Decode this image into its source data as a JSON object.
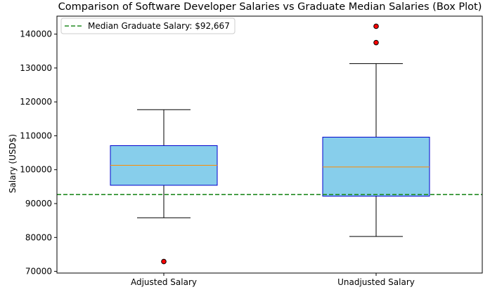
{
  "chart_data": {
    "type": "box",
    "title": "Comparison of Software Developer Salaries vs Graduate Median Salaries (Box Plot)",
    "xlabel": "",
    "ylabel": "Salary (USD$)",
    "ylim": [
      69500,
      145300
    ],
    "yticks": [
      70000,
      80000,
      90000,
      100000,
      110000,
      120000,
      130000,
      140000
    ],
    "categories": [
      "Adjusted Salary",
      "Unadjusted Salary"
    ],
    "boxes": [
      {
        "category": "Adjusted Salary",
        "whisker_low": 85800,
        "q1": 95400,
        "median": 101300,
        "q3": 107100,
        "whisker_high": 117700,
        "outliers": [
          72900
        ]
      },
      {
        "category": "Unadjusted Salary",
        "whisker_low": 80300,
        "q1": 92200,
        "median": 100800,
        "q3": 109600,
        "whisker_high": 131300,
        "outliers": [
          137500,
          142300
        ]
      }
    ],
    "reference_line": {
      "value": 92667,
      "label": "Median Graduate Salary: $92,667",
      "color": "#228b22",
      "style": "dashed"
    },
    "colors": {
      "box_fill": "#87ceeb",
      "box_edge": "#0000cd",
      "median_line": "#ff8c00",
      "outlier_fill": "#ff0000",
      "outlier_edge": "#000000"
    },
    "legend_position": "top-left",
    "grid": false
  }
}
